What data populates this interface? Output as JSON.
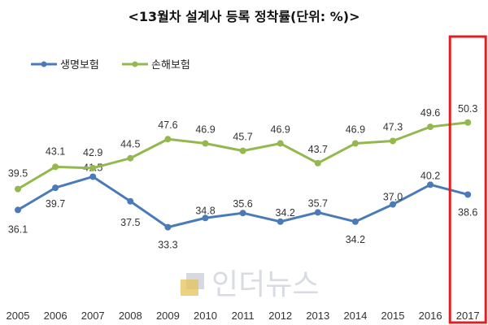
{
  "chart_data": {
    "type": "line",
    "title": "<13월차 설계사 등록 정착률(단위: %)>",
    "categories": [
      "2005",
      "2006",
      "2007",
      "2008",
      "2009",
      "2010",
      "2011",
      "2012",
      "2013",
      "2014",
      "2015",
      "2016",
      "2017"
    ],
    "series": [
      {
        "name": "생명보험",
        "color": "#4a7ab8",
        "values": [
          36.1,
          39.7,
          41.5,
          37.5,
          33.3,
          34.8,
          35.6,
          34.2,
          35.7,
          34.2,
          37.0,
          40.2,
          38.6
        ],
        "labels": [
          "36.1",
          "39.7",
          "41.5",
          "37.5",
          "33.3",
          "34.8",
          "35.6",
          "34.2",
          "35.7",
          "34.2",
          "37.0",
          "40.2",
          "38.6"
        ]
      },
      {
        "name": "손해보험",
        "color": "#92b84e",
        "values": [
          39.5,
          43.1,
          42.9,
          44.5,
          47.6,
          46.9,
          45.7,
          46.9,
          43.7,
          46.9,
          47.3,
          49.6,
          50.3
        ],
        "labels": [
          "39.5",
          "43.1",
          "42.9",
          "44.5",
          "47.6",
          "46.9",
          "45.7",
          "46.9",
          "43.7",
          "46.9",
          "47.3",
          "49.6",
          "50.3"
        ]
      }
    ],
    "highlight": {
      "category": "2017",
      "color": "#e02020"
    },
    "legend_position": "top-left",
    "grid": false
  },
  "watermark": {
    "text": "인더뉴스"
  }
}
